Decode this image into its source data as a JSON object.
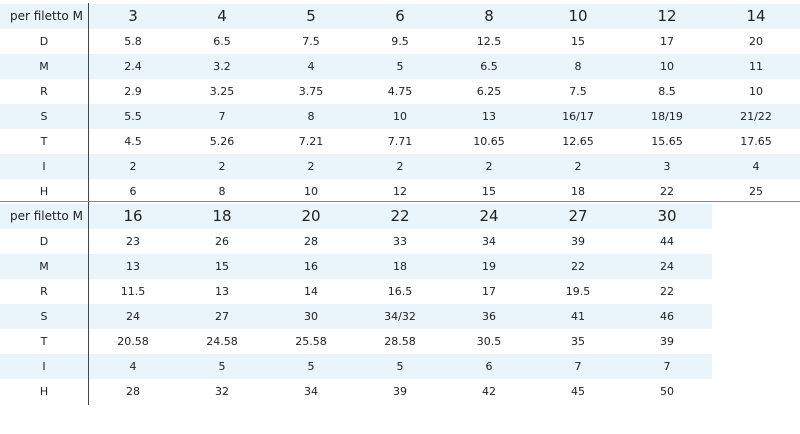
{
  "tables": [
    {
      "header": "per filetto M",
      "columns": [
        3,
        4,
        5,
        6,
        8,
        10,
        12,
        14
      ],
      "rows": [
        {
          "label": "D",
          "values": [
            5.8,
            6.5,
            7.5,
            9.5,
            12.5,
            15,
            17,
            20
          ]
        },
        {
          "label": "M",
          "values": [
            2.4,
            3.2,
            4,
            5,
            6.5,
            8,
            10,
            11
          ]
        },
        {
          "label": "R",
          "values": [
            2.9,
            3.25,
            3.75,
            4.75,
            6.25,
            7.5,
            8.5,
            10
          ]
        },
        {
          "label": "S",
          "values": [
            5.5,
            7,
            8,
            10,
            13,
            "16/17",
            "18/19",
            "21/22"
          ]
        },
        {
          "label": "T",
          "values": [
            4.5,
            5.26,
            7.21,
            7.71,
            10.65,
            12.65,
            15.65,
            17.65
          ]
        },
        {
          "label": "I",
          "values": [
            2,
            2,
            2,
            2,
            2,
            2,
            3,
            4
          ]
        },
        {
          "label": "H",
          "values": [
            6,
            8,
            10,
            12,
            15,
            18,
            22,
            25
          ]
        }
      ]
    },
    {
      "header": "per filetto M",
      "columns": [
        16,
        18,
        20,
        22,
        24,
        27,
        30
      ],
      "rows": [
        {
          "label": "D",
          "values": [
            23,
            26,
            28,
            33,
            34,
            39,
            44
          ]
        },
        {
          "label": "M",
          "values": [
            13,
            15,
            16,
            18,
            19,
            22,
            24
          ]
        },
        {
          "label": "R",
          "values": [
            11.5,
            13,
            14,
            16.5,
            17,
            19.5,
            22
          ]
        },
        {
          "label": "S",
          "values": [
            24,
            27,
            30,
            "34/32",
            36,
            41,
            46
          ]
        },
        {
          "label": "T",
          "values": [
            20.58,
            24.58,
            25.58,
            28.58,
            30.5,
            35,
            39
          ]
        },
        {
          "label": "I",
          "values": [
            4,
            5,
            5,
            5,
            6,
            7,
            7
          ]
        },
        {
          "label": "H",
          "values": [
            28,
            32,
            34,
            39,
            42,
            45,
            50
          ]
        }
      ]
    }
  ]
}
